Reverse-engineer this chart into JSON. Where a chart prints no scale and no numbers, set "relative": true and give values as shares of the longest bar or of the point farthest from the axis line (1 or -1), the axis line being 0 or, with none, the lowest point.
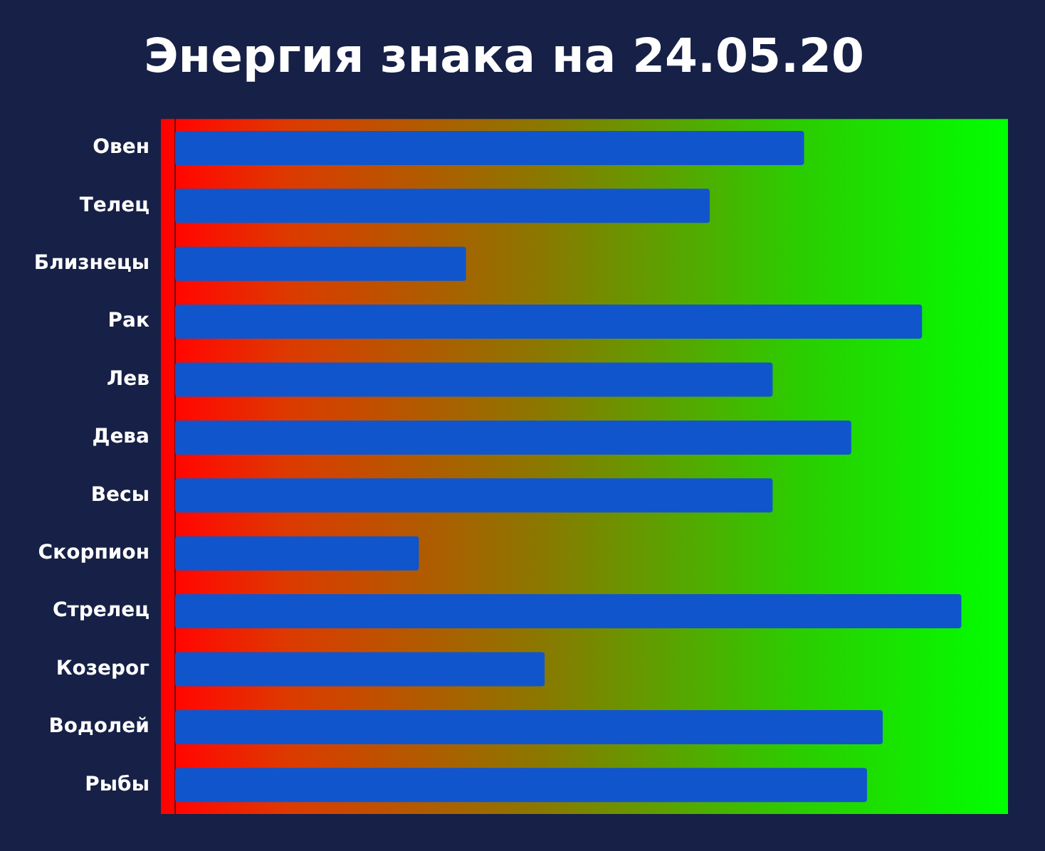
{
  "chart_data": {
    "type": "bar",
    "orientation": "horizontal",
    "relative": true,
    "title": "Энергия знака на 24.05.20",
    "categories": [
      "Овен",
      "Телец",
      "Близнецы",
      "Рак",
      "Лев",
      "Дева",
      "Весы",
      "Скорпион",
      "Стрелец",
      "Козерог",
      "Водолей",
      "Рыбы"
    ],
    "values": [
      0.8,
      0.68,
      0.37,
      0.95,
      0.76,
      0.86,
      0.76,
      0.31,
      1,
      0.47,
      0.9,
      0.88
    ],
    "color": "#1155cc"
  }
}
